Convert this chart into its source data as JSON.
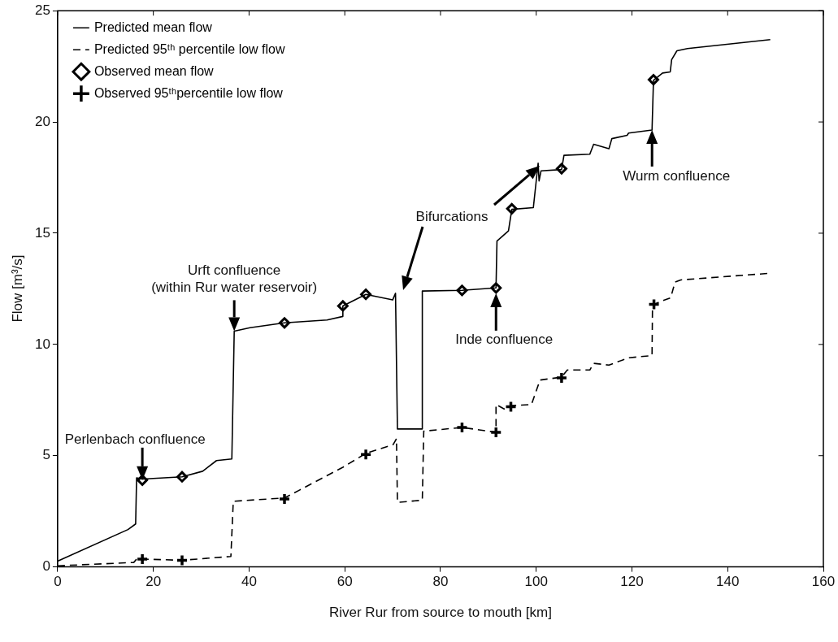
{
  "chart_data": {
    "type": "line",
    "xlabel": "River Rur from source to mouth [km]",
    "ylabel": "Flow [m³/s]",
    "xlim": [
      0,
      160
    ],
    "xticks": [
      0,
      20,
      40,
      60,
      80,
      100,
      120,
      140,
      160
    ],
    "ylim": [
      0,
      25
    ],
    "yticks": [
      0,
      5,
      10,
      15,
      20,
      25
    ],
    "grid": false,
    "legend": "top left",
    "series": [
      {
        "name": "Predicted mean flow",
        "color": "#000000",
        "marker": "none",
        "line_style": "solid",
        "x": [
          0,
          14.7,
          16.3,
          16.5,
          17.7,
          26,
          30.3,
          33.2,
          36.4,
          36.9,
          40.2,
          47.4,
          56.3,
          59.6,
          59.6,
          64.4,
          70,
          70.6,
          71,
          76.2,
          76.2,
          84.5,
          91.6,
          91.8,
          94.2,
          94.9,
          99.4,
          100.4,
          100.6,
          101,
          105.3,
          105.8,
          111.2,
          112,
          115.2,
          115.8,
          119,
          119.3,
          124.2,
          124.5,
          126.4,
          128,
          128.3,
          129.4,
          131.6,
          148.9
        ],
        "values": [
          0.26,
          1.68,
          1.93,
          4.0,
          3.95,
          4.05,
          4.3,
          4.78,
          4.85,
          10.6,
          10.75,
          10.97,
          11.1,
          11.26,
          11.73,
          12.25,
          12.0,
          12.3,
          6.2,
          6.2,
          12.4,
          12.43,
          12.54,
          14.65,
          15.1,
          16.07,
          16.15,
          18.15,
          17.35,
          17.8,
          17.86,
          18.5,
          18.55,
          19.0,
          18.8,
          19.25,
          19.4,
          19.5,
          19.64,
          21.87,
          22.2,
          22.25,
          22.8,
          23.2,
          23.3,
          23.7
        ]
      },
      {
        "name": "Predicted 95ᵗʰ percentile low flow",
        "color": "#000000",
        "marker": "none",
        "line_style": "dashed",
        "x": [
          0,
          15.9,
          16.5,
          17.7,
          26,
          36.2,
          36.7,
          47.4,
          50.6,
          59.6,
          64.4,
          70.1,
          70.8,
          71,
          76.2,
          76.5,
          84.5,
          91.6,
          91.6,
          93.3,
          94.7,
          99,
          100.8,
          105.3,
          106.5,
          111.2,
          112,
          115.2,
          119.3,
          124.2,
          124.3,
          126.2,
          128.1,
          129,
          130.2,
          148.9
        ],
        "values": [
          0.05,
          0.2,
          0.35,
          0.35,
          0.3,
          0.47,
          2.95,
          3.1,
          3.46,
          4.48,
          5.1,
          5.5,
          5.76,
          2.9,
          3.0,
          6.1,
          6.27,
          6.05,
          7.3,
          7.1,
          7.25,
          7.3,
          8.4,
          8.53,
          8.85,
          8.85,
          9.15,
          9.07,
          9.4,
          9.5,
          11.77,
          11.95,
          12.1,
          12.8,
          12.9,
          13.2
        ]
      },
      {
        "name": "Observed mean flow",
        "type": "scatter",
        "color": "#000000",
        "marker": "diamond",
        "x": [
          17.7,
          26,
          47.4,
          59.6,
          64.4,
          84.5,
          91.6,
          94.9,
          105.3,
          124.5
        ],
        "values": [
          3.9,
          4.05,
          10.97,
          11.73,
          12.25,
          12.43,
          12.54,
          16.1,
          17.9,
          21.9
        ]
      },
      {
        "name": "Observed 95ᵗʰpercentile low flow",
        "type": "scatter",
        "color": "#000000",
        "marker": "cross",
        "x": [
          17.7,
          26,
          47.4,
          64.4,
          84.5,
          91.6,
          94.7,
          105.3,
          124.6
        ],
        "values": [
          0.35,
          0.3,
          3.05,
          5.05,
          6.27,
          6.05,
          7.2,
          8.5,
          11.8
        ]
      }
    ],
    "annotations": [
      {
        "text": "Perlenbach confluence",
        "x": 17.7,
        "y": 3.9
      },
      {
        "text": "Urft confluence\n(within Rur water reservoir)",
        "x": 36.9,
        "y": 10.6
      },
      "Bifurcations",
      {
        "text": "Inde confluence",
        "x": 91.6,
        "y": 12.3
      },
      {
        "text": "Wurm confluence",
        "x": 124.2,
        "y": 19.64
      }
    ]
  }
}
